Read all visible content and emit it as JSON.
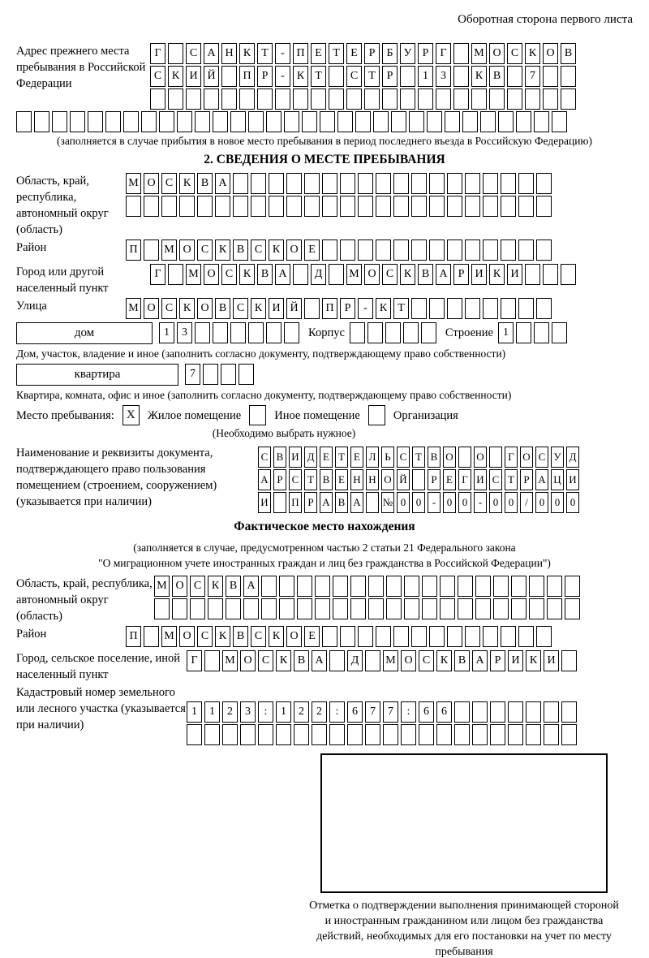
{
  "header": {
    "note": "Оборотная сторона первого листа"
  },
  "prev_address": {
    "label": "Адрес прежнего места пребывания в Российской Федерации",
    "rows": [
      {
        "text": "Г САНКТ-ПЕТЕРБУРГ МОСКОВ",
        "len": 24
      },
      {
        "text": "СКИЙ ПР-КТ СТР 13 КВ 7",
        "len": 24
      },
      {
        "text": "",
        "len": 24
      },
      {
        "text": "",
        "len": 31
      }
    ],
    "caption": "(заполняется в случае прибытия в новое место пребывания в период последнего въезда в Российскую Федерацию)"
  },
  "section2": {
    "title": "2. СВЕДЕНИЯ О МЕСТЕ ПРЕБЫВАНИЯ",
    "oblast": {
      "label": "Область, край, республика, автономный округ (область)",
      "row1": {
        "text": "МОСКВА",
        "len": 24
      },
      "row2": {
        "text": "",
        "len": 24
      }
    },
    "rayon": {
      "label": "Район",
      "row": {
        "text": "П МОСКВСКОЕ",
        "len": 24
      }
    },
    "gorod": {
      "label": "Город или другой населенный пункт",
      "row": {
        "text": "Г МОСКВА Д МОСКВАРИКИ",
        "len": 24
      }
    },
    "ulitsa": {
      "label": "Улица",
      "row": {
        "text": "МОСКОВСКИЙ ПР-КТ",
        "len": 24
      }
    },
    "dom": {
      "box_label": "дом",
      "cells": {
        "text": "13",
        "len": 8
      },
      "korpus_label": "Корпус",
      "korpus_cells": {
        "text": "",
        "len": 5
      },
      "stroenie_label": "Строение",
      "stroenie_cells": {
        "text": "1",
        "len": 4
      },
      "caption": "Дом, участок, владение и иное (заполнить согласно документу, подтверждающему право собственности)"
    },
    "kvartira": {
      "box_label": "квартира",
      "cells": {
        "text": "7",
        "len": 4
      },
      "caption": "Квартира, комната, офис и иное (заполнить согласно документу, подтверждающему право собственности)"
    },
    "stay": {
      "label": "Место пребывания:",
      "option1_mark": "X",
      "option1": "Жилое помещение",
      "option2_mark": "",
      "option2": "Иное помещение",
      "option3_mark": "",
      "option3": "Организация",
      "note": "(Необходимо выбрать нужное)"
    },
    "doc": {
      "label": "Наименование и реквизиты документа, подтверждающего право пользования помещением (строением, сооружением) (указывается при наличии)",
      "rows": [
        {
          "text": "СВИДЕТЕЛЬСТВО О ГОСУД",
          "len": 21
        },
        {
          "text": "АРСТВЕННОЙ РЕГИСТРАЦИ",
          "len": 21
        },
        {
          "text": "И ПРАВА №00-00-00/000",
          "len": 21
        }
      ]
    }
  },
  "actual_location": {
    "title": "Фактическое место нахождения",
    "note_line1": "(заполняется в случае, предусмотренном частью 2 статьи 21 Федерального закона",
    "note_line2": "\"О миграционном учете иностранных граждан и лиц без гражданства в Российской Федерации\")",
    "oblast": {
      "label": "Область, край, республика, автономный округ (область)",
      "row1": {
        "text": "МОСКВА",
        "len": 24
      },
      "row2": {
        "text": "",
        "len": 24
      }
    },
    "rayon": {
      "label": "Район",
      "row": {
        "text": "П МОСКВСКОЕ",
        "len": 24
      }
    },
    "gorod": {
      "label": "Город, сельское поселение, иной населенный пункт",
      "row": {
        "text": "Г МОСКВА Д МОСКВАРИКИ",
        "len": 22
      }
    },
    "kadastr": {
      "label": "Кадастровый номер земельного или лесного участка (указывается при наличии)",
      "row1": {
        "text": "1123:122:677:66",
        "len": 22
      },
      "row2": {
        "text": "",
        "len": 22
      }
    }
  },
  "stamp": {
    "caption": "Отметка о подтверждении выполнения принимающей стороной и иностранным гражданином или лицом без гражданства действий, необходимых для его постановки на учет по месту пребывания"
  }
}
